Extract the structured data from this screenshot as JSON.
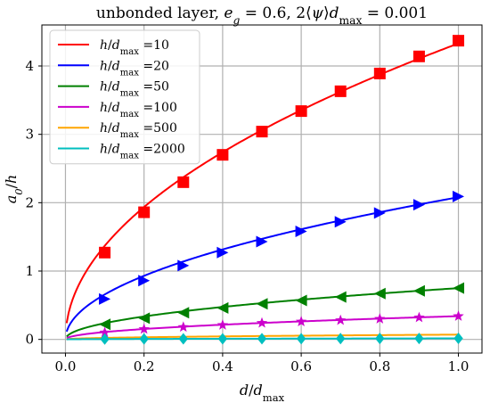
{
  "chart_data": {
    "type": "line",
    "title": "unbonded layer, e_g = 0.6, 2⟨ψ⟩d_max = 0.001",
    "xlabel": "d/d_max",
    "ylabel": "a_0/h",
    "xlim": [
      -0.06,
      1.06
    ],
    "ylim": [
      -0.2,
      4.6
    ],
    "xticks": [
      0.0,
      0.2,
      0.4,
      0.6,
      0.8,
      1.0
    ],
    "xtick_labels": [
      "0.0",
      "0.2",
      "0.4",
      "0.6",
      "0.8",
      "1.0"
    ],
    "yticks": [
      0,
      1,
      2,
      3,
      4
    ],
    "ytick_labels": [
      "0",
      "1",
      "2",
      "3",
      "4"
    ],
    "grid": true,
    "legend_position": "upper-left",
    "series": [
      {
        "name": "h/d_max =10",
        "color": "#ff0000",
        "marker": "square",
        "curve_coef": 4.33,
        "x": [
          0.1,
          0.2,
          0.3,
          0.4,
          0.5,
          0.6,
          0.7,
          0.8,
          0.9,
          1.0
        ],
        "y": [
          1.27,
          1.86,
          2.3,
          2.7,
          3.04,
          3.34,
          3.63,
          3.89,
          4.14,
          4.37
        ]
      },
      {
        "name": "h/d_max =20",
        "color": "#0000ff",
        "marker": "triangle-right",
        "curve_coef": 2.08,
        "x": [
          0.1,
          0.2,
          0.3,
          0.4,
          0.5,
          0.6,
          0.7,
          0.8,
          0.9,
          1.0
        ],
        "y": [
          0.59,
          0.86,
          1.08,
          1.27,
          1.43,
          1.58,
          1.72,
          1.85,
          1.97,
          2.09
        ]
      },
      {
        "name": "h/d_max =50",
        "color": "#008000",
        "marker": "triangle-left",
        "curve_coef": 0.75,
        "x": [
          0.1,
          0.2,
          0.3,
          0.4,
          0.5,
          0.6,
          0.7,
          0.8,
          0.9,
          1.0
        ],
        "y": [
          0.22,
          0.31,
          0.39,
          0.46,
          0.52,
          0.57,
          0.62,
          0.67,
          0.71,
          0.75
        ]
      },
      {
        "name": "h/d_max =100",
        "color": "#cc00cc",
        "marker": "star",
        "curve_coef": 0.34,
        "x": [
          0.1,
          0.2,
          0.3,
          0.4,
          0.5,
          0.6,
          0.7,
          0.8,
          0.9,
          1.0
        ],
        "y": [
          0.1,
          0.15,
          0.18,
          0.21,
          0.24,
          0.26,
          0.28,
          0.3,
          0.32,
          0.34
        ]
      },
      {
        "name": "h/d_max =500",
        "color": "#ffa500",
        "marker": "none",
        "curve_coef": 0.07,
        "x": [
          0.1,
          0.2,
          0.3,
          0.4,
          0.5,
          0.6,
          0.7,
          0.8,
          0.9,
          1.0
        ],
        "y": [
          0.02,
          0.03,
          0.04,
          0.04,
          0.05,
          0.05,
          0.06,
          0.06,
          0.07,
          0.07
        ]
      },
      {
        "name": "h/d_max =2000",
        "color": "#00bfbf",
        "marker": "diamond",
        "curve_coef": 0.015,
        "x": [
          0.1,
          0.2,
          0.3,
          0.4,
          0.5,
          0.6,
          0.7,
          0.8,
          0.9,
          1.0
        ],
        "y": [
          0.005,
          0.007,
          0.008,
          0.009,
          0.01,
          0.011,
          0.012,
          0.013,
          0.014,
          0.015
        ]
      }
    ]
  }
}
